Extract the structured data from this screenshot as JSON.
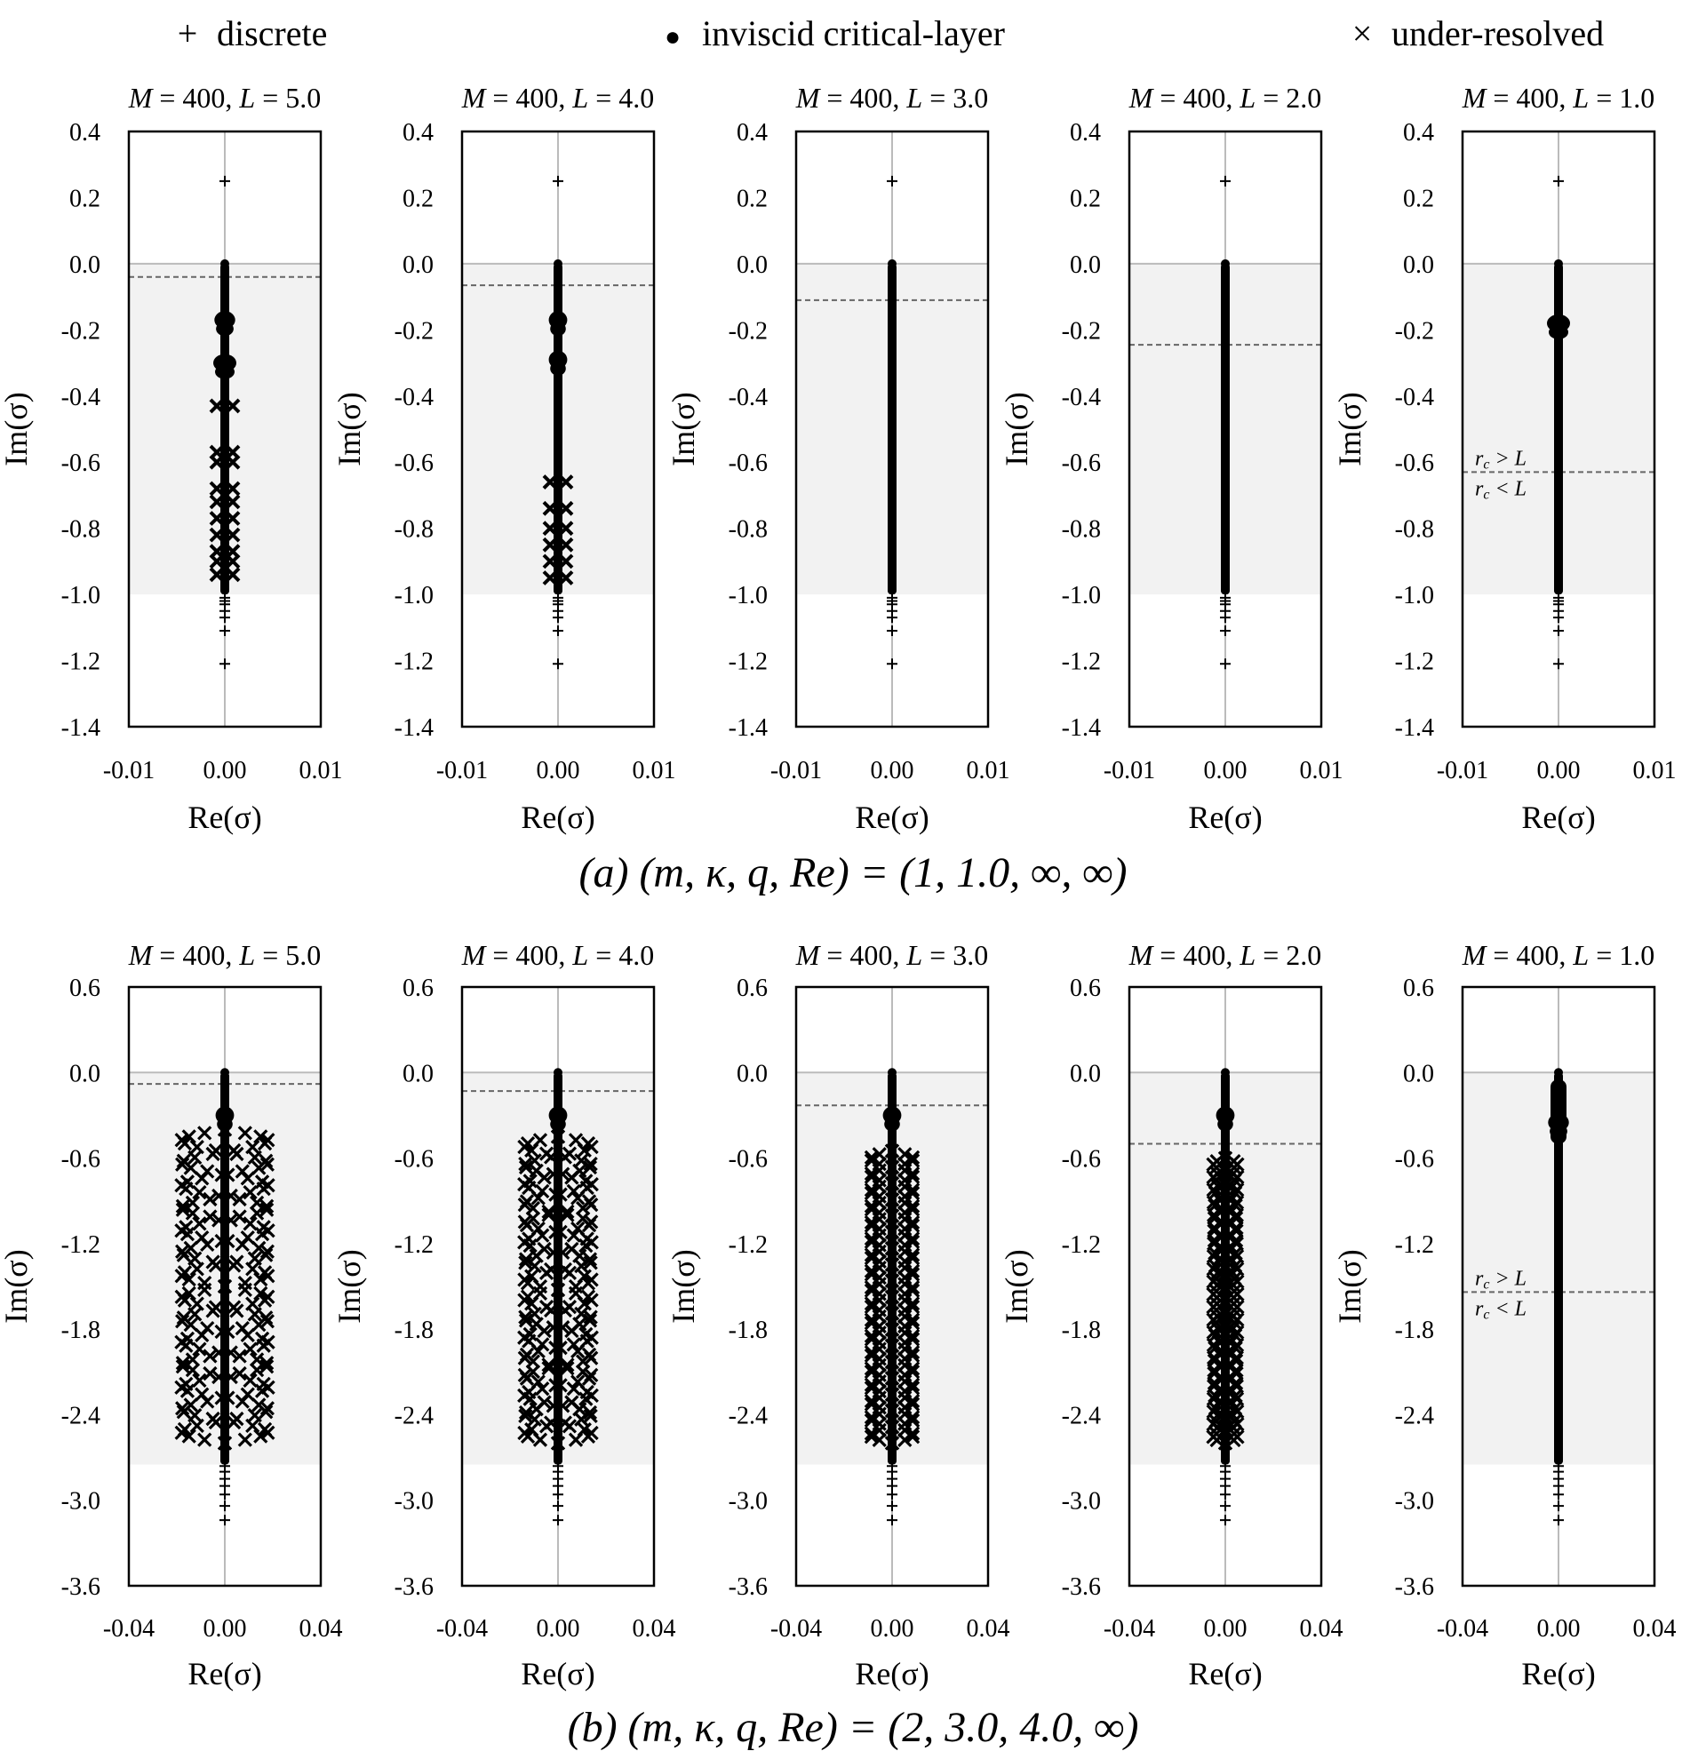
{
  "legend": {
    "discrete": {
      "symbol": "+",
      "label": "discrete"
    },
    "inviscid": {
      "symbol": "●",
      "label": "inviscid critical-layer"
    },
    "underresolved": {
      "symbol": "×",
      "label": "under-resolved"
    }
  },
  "captions": {
    "a": "(a) (m, κ, q, Re) = (1, 1.0, ∞, ∞)",
    "b": "(b) (m, κ, q, Re) = (2, 3.0, 4.0, ∞)"
  },
  "colors": {
    "shade": "#f2f2f2",
    "axis": "#bbbbbb",
    "dash": "#666666",
    "marker": "#000000"
  },
  "chart_data": [
    {
      "type": "scatter",
      "row": "a",
      "xlabel": "Re(σ)",
      "ylabel": "Im(σ)",
      "xlim": [
        -0.01,
        0.01
      ],
      "xticks": [
        "-0.01",
        "0.00",
        "0.01"
      ],
      "ylim": [
        -1.4,
        0.4
      ],
      "yticks": [
        "0.4",
        "0.2",
        "0.0",
        "-0.2",
        "-0.4",
        "-0.6",
        "-0.8",
        "-1.0",
        "-1.2",
        "-1.4"
      ],
      "continuum_band": [
        -1.0,
        0.0
      ],
      "discrete": [
        0.25,
        -1.01,
        -1.02,
        -1.03,
        -1.05,
        -1.07,
        -1.11,
        -1.21
      ],
      "panels": [
        {
          "title": "M = 400, L = 5.0",
          "title_M": "M",
          "title_mval": " = 400, ",
          "title_L": "L",
          "title_lval": " = 5.0",
          "dashed": -0.04,
          "bulges": [
            [
              -0.17,
              4.5
            ],
            [
              -0.3,
              5
            ]
          ],
          "xmarks": [
            -0.43,
            -0.57,
            -0.6,
            -0.68,
            -0.72,
            -0.77,
            -0.82,
            -0.87,
            -0.9,
            -0.94
          ]
        },
        {
          "title": "M = 400, L = 4.0",
          "title_M": "M",
          "title_mval": " = 400, ",
          "title_L": "L",
          "title_lval": " = 4.0",
          "dashed": -0.065,
          "bulges": [
            [
              -0.17,
              4
            ],
            [
              -0.29,
              4
            ]
          ],
          "xmarks": [
            -0.66,
            -0.74,
            -0.8,
            -0.85,
            -0.9,
            -0.95
          ]
        },
        {
          "title": "M = 400, L = 3.0",
          "title_M": "M",
          "title_mval": " = 400, ",
          "title_L": "L",
          "title_lval": " = 3.0",
          "dashed": -0.11,
          "bulges": [],
          "xmarks": []
        },
        {
          "title": "M = 400, L = 2.0",
          "title_M": "M",
          "title_mval": " = 400, ",
          "title_L": "L",
          "title_lval": " = 2.0",
          "dashed": -0.245,
          "bulges": [],
          "xmarks": []
        },
        {
          "title": "M = 400, L = 1.0",
          "title_M": "M",
          "title_mval": " = 400, ",
          "title_L": "L",
          "title_lval": " = 1.0",
          "dashed": -0.63,
          "bulges": [
            [
              -0.18,
              5
            ]
          ],
          "xmarks": [],
          "annotation": {
            "above_sub": "c",
            "above_rest": " > L",
            "below_sub": "c",
            "below_rest": " < L",
            "r": "r"
          }
        }
      ]
    },
    {
      "type": "scatter",
      "row": "b",
      "xlabel": "Re(σ)",
      "ylabel": "Im(σ)",
      "xlim": [
        -0.04,
        0.04
      ],
      "xticks": [
        "-0.04",
        "0.00",
        "0.04"
      ],
      "ylim": [
        -3.6,
        0.6
      ],
      "yticks": [
        "0.6",
        "0.0",
        "-0.6",
        "-1.2",
        "-1.8",
        "-2.4",
        "-3.0",
        "-3.6"
      ],
      "continuum_band": [
        -2.75,
        0.0
      ],
      "discrete": [
        -2.76,
        -2.8,
        -2.85,
        -2.9,
        -2.96,
        -3.04,
        -3.14
      ],
      "panels": [
        {
          "title": "M = 400, L = 5.0",
          "title_M": "M",
          "title_mval": " = 400, ",
          "title_L": "L",
          "title_lval": " = 5.0",
          "dashed": -0.08,
          "bulges": [
            [
              -0.3,
              4
            ]
          ],
          "helix": {
            "start": -0.4,
            "end": -2.6,
            "amp": 0.018,
            "loops": 7
          }
        },
        {
          "title": "M = 400, L = 4.0",
          "title_M": "M",
          "title_mval": " = 400, ",
          "title_L": "L",
          "title_lval": " = 4.0",
          "dashed": -0.13,
          "bulges": [
            [
              -0.3,
              4
            ]
          ],
          "helix": {
            "start": -0.45,
            "end": -2.6,
            "amp": 0.014,
            "loops": 8
          }
        },
        {
          "title": "M = 400, L = 3.0",
          "title_M": "M",
          "title_mval": " = 400, ",
          "title_L": "L",
          "title_lval": " = 3.0",
          "dashed": -0.23,
          "bulges": [
            [
              -0.3,
              4
            ]
          ],
          "helix": {
            "start": -0.55,
            "end": -2.6,
            "amp": 0.009,
            "loops": 9
          }
        },
        {
          "title": "M = 400, L = 2.0",
          "title_M": "M",
          "title_mval": " = 400, ",
          "title_L": "L",
          "title_lval": " = 2.0",
          "dashed": -0.5,
          "bulges": [
            [
              -0.3,
              4
            ]
          ],
          "helix": {
            "start": -0.6,
            "end": -2.6,
            "amp": 0.005,
            "loops": 11
          }
        },
        {
          "title": "M = 400, L = 1.0",
          "title_M": "M",
          "title_mval": " = 400, ",
          "title_L": "L",
          "title_lval": " = 1.0",
          "dashed": -1.54,
          "bulges": [
            [
              -0.35,
              4.5
            ]
          ],
          "tail": [
            -0.05,
            -0.5
          ],
          "annotation": {
            "above_sub": "c",
            "above_rest": " > L",
            "below_sub": "c",
            "below_rest": " < L",
            "r": "r"
          }
        }
      ]
    }
  ]
}
